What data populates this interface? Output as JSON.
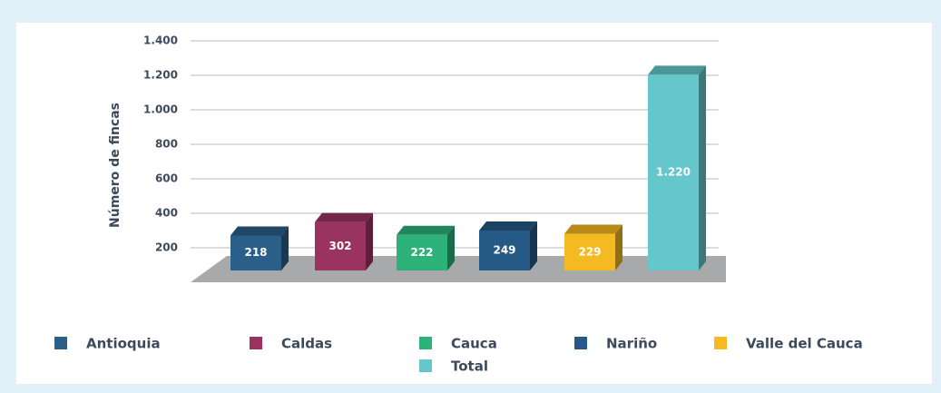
{
  "chart_data": {
    "type": "bar3d",
    "y_label": "Número de fincas",
    "categories": [
      "Antioquia",
      "Caldas",
      "Cauca",
      "Nariño",
      "Valle del Cauca",
      "Total"
    ],
    "values": [
      218,
      302,
      222,
      249,
      229,
      1220
    ],
    "value_labels": [
      "218",
      "302",
      "222",
      "249",
      "229",
      "1.220"
    ],
    "colors": [
      "#2a5f8a",
      "#9b3360",
      "#2db37a",
      "#245a85",
      "#f5b921",
      "#65c6cc"
    ],
    "ylim": [
      0,
      1400
    ],
    "yticks": [
      200,
      400,
      600,
      800,
      {
        "value": 1000,
        "label": "1.000"
      },
      {
        "value": 1200,
        "label": "1.200"
      },
      {
        "value": 1400,
        "label": "1.400"
      }
    ],
    "grid": true
  }
}
